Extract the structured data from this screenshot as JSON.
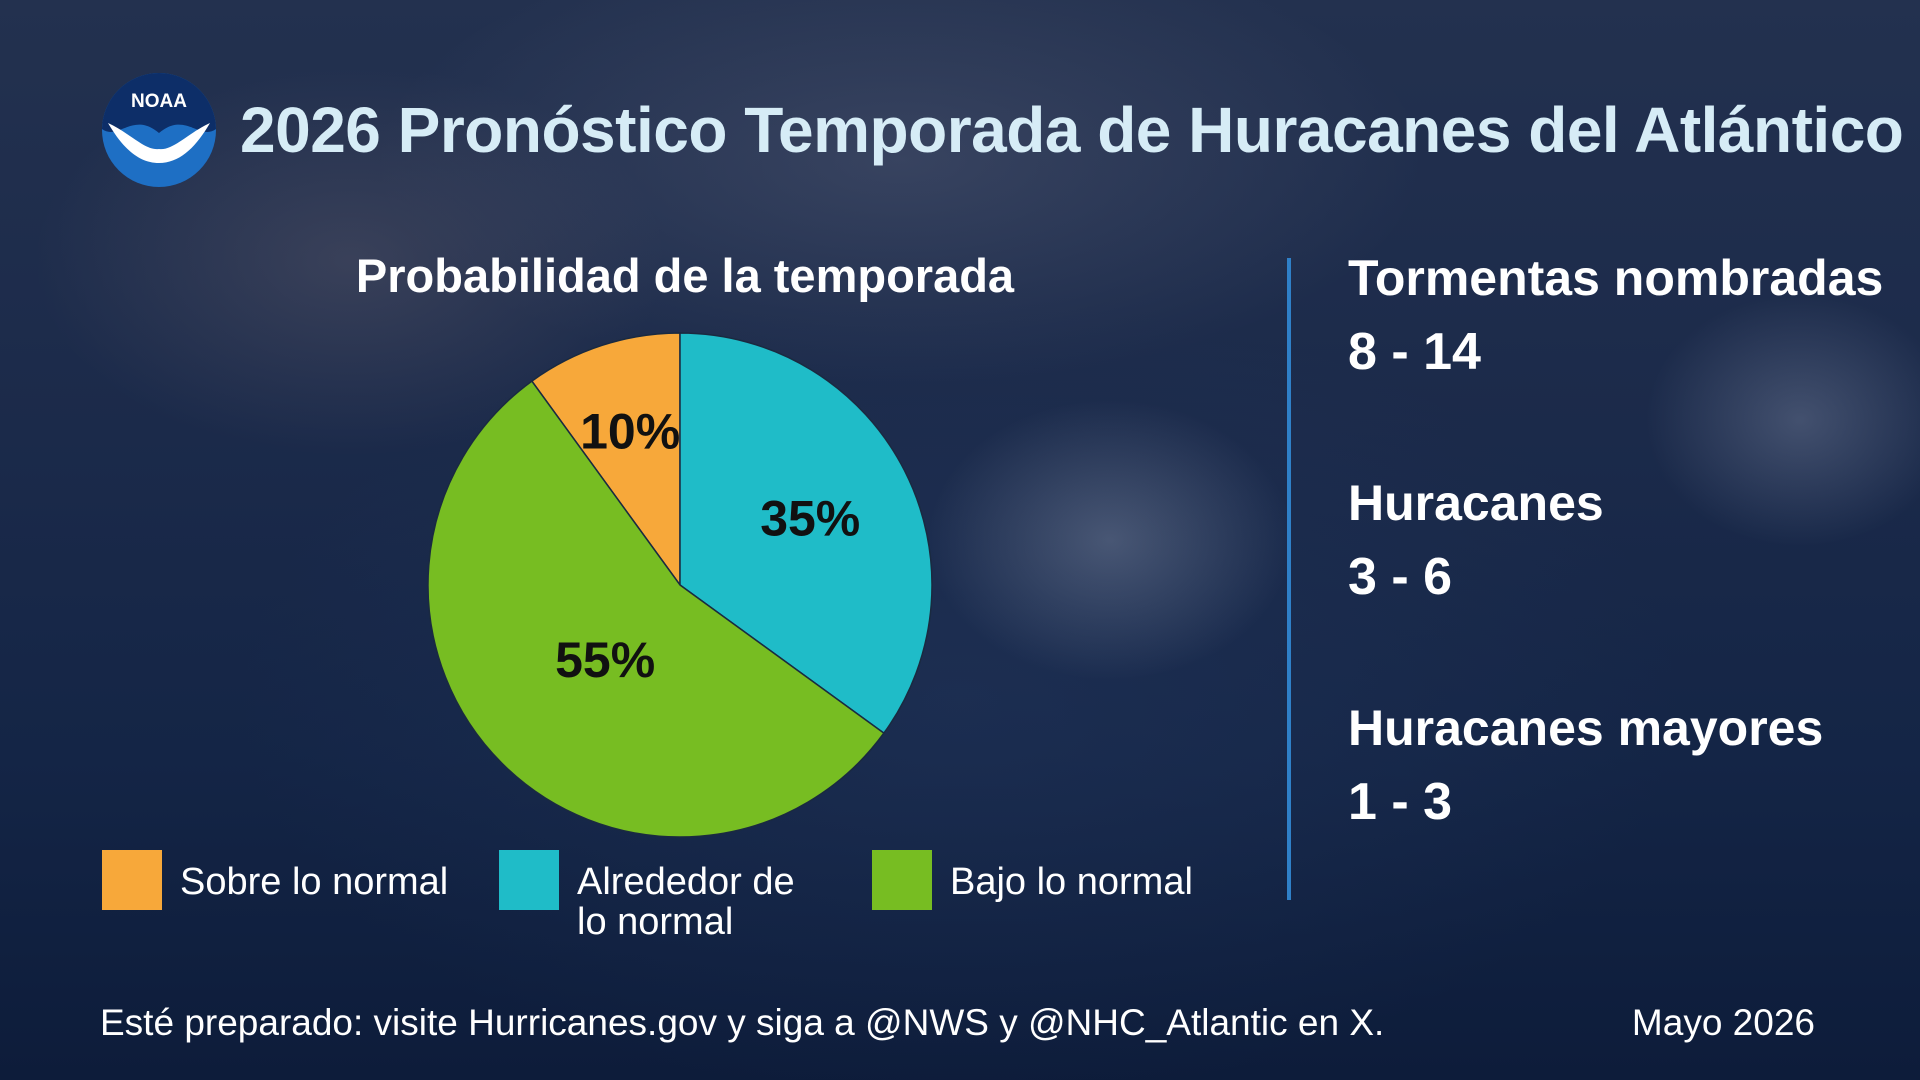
{
  "title": "2026 Pronóstico Temporada de Huracanes del Atlántico",
  "logo": {
    "text": "NOAA",
    "icon": "noaa-logo-icon"
  },
  "chart_data": {
    "type": "pie",
    "title": "Probabilidad de la temporada",
    "slices": [
      {
        "label": "Sobre lo normal",
        "value": 10,
        "display": "10%",
        "color": "#f7a83a"
      },
      {
        "label": "Alrededor de lo normal",
        "value": 35,
        "display": "35%",
        "color": "#1fbcc8"
      },
      {
        "label": "Bajo lo normal",
        "value": 55,
        "display": "55%",
        "color": "#77bd22"
      }
    ],
    "legend_placement": "bottom"
  },
  "legend": [
    {
      "label": "Sobre lo normal",
      "color": "#f7a83a"
    },
    {
      "label_line1": "Alrededor de",
      "label_line2": "lo normal",
      "color": "#1fbcc8"
    },
    {
      "label": "Bajo lo normal",
      "color": "#77bd22"
    }
  ],
  "stats": [
    {
      "label": "Tormentas nombradas",
      "value": "8 - 14"
    },
    {
      "label": "Huracanes",
      "value": "3 - 6"
    },
    {
      "label": "Huracanes mayores",
      "value": "1 - 3"
    }
  ],
  "footer": {
    "note": "Esté preparado: visite Hurricanes.gov y siga a @NWS y @NHC_Atlantic en X.",
    "date": "Mayo 2026"
  },
  "colors": {
    "title": "#d6ecf6",
    "divider": "#2f80c8",
    "logo_blue": "#1e6fc4"
  }
}
